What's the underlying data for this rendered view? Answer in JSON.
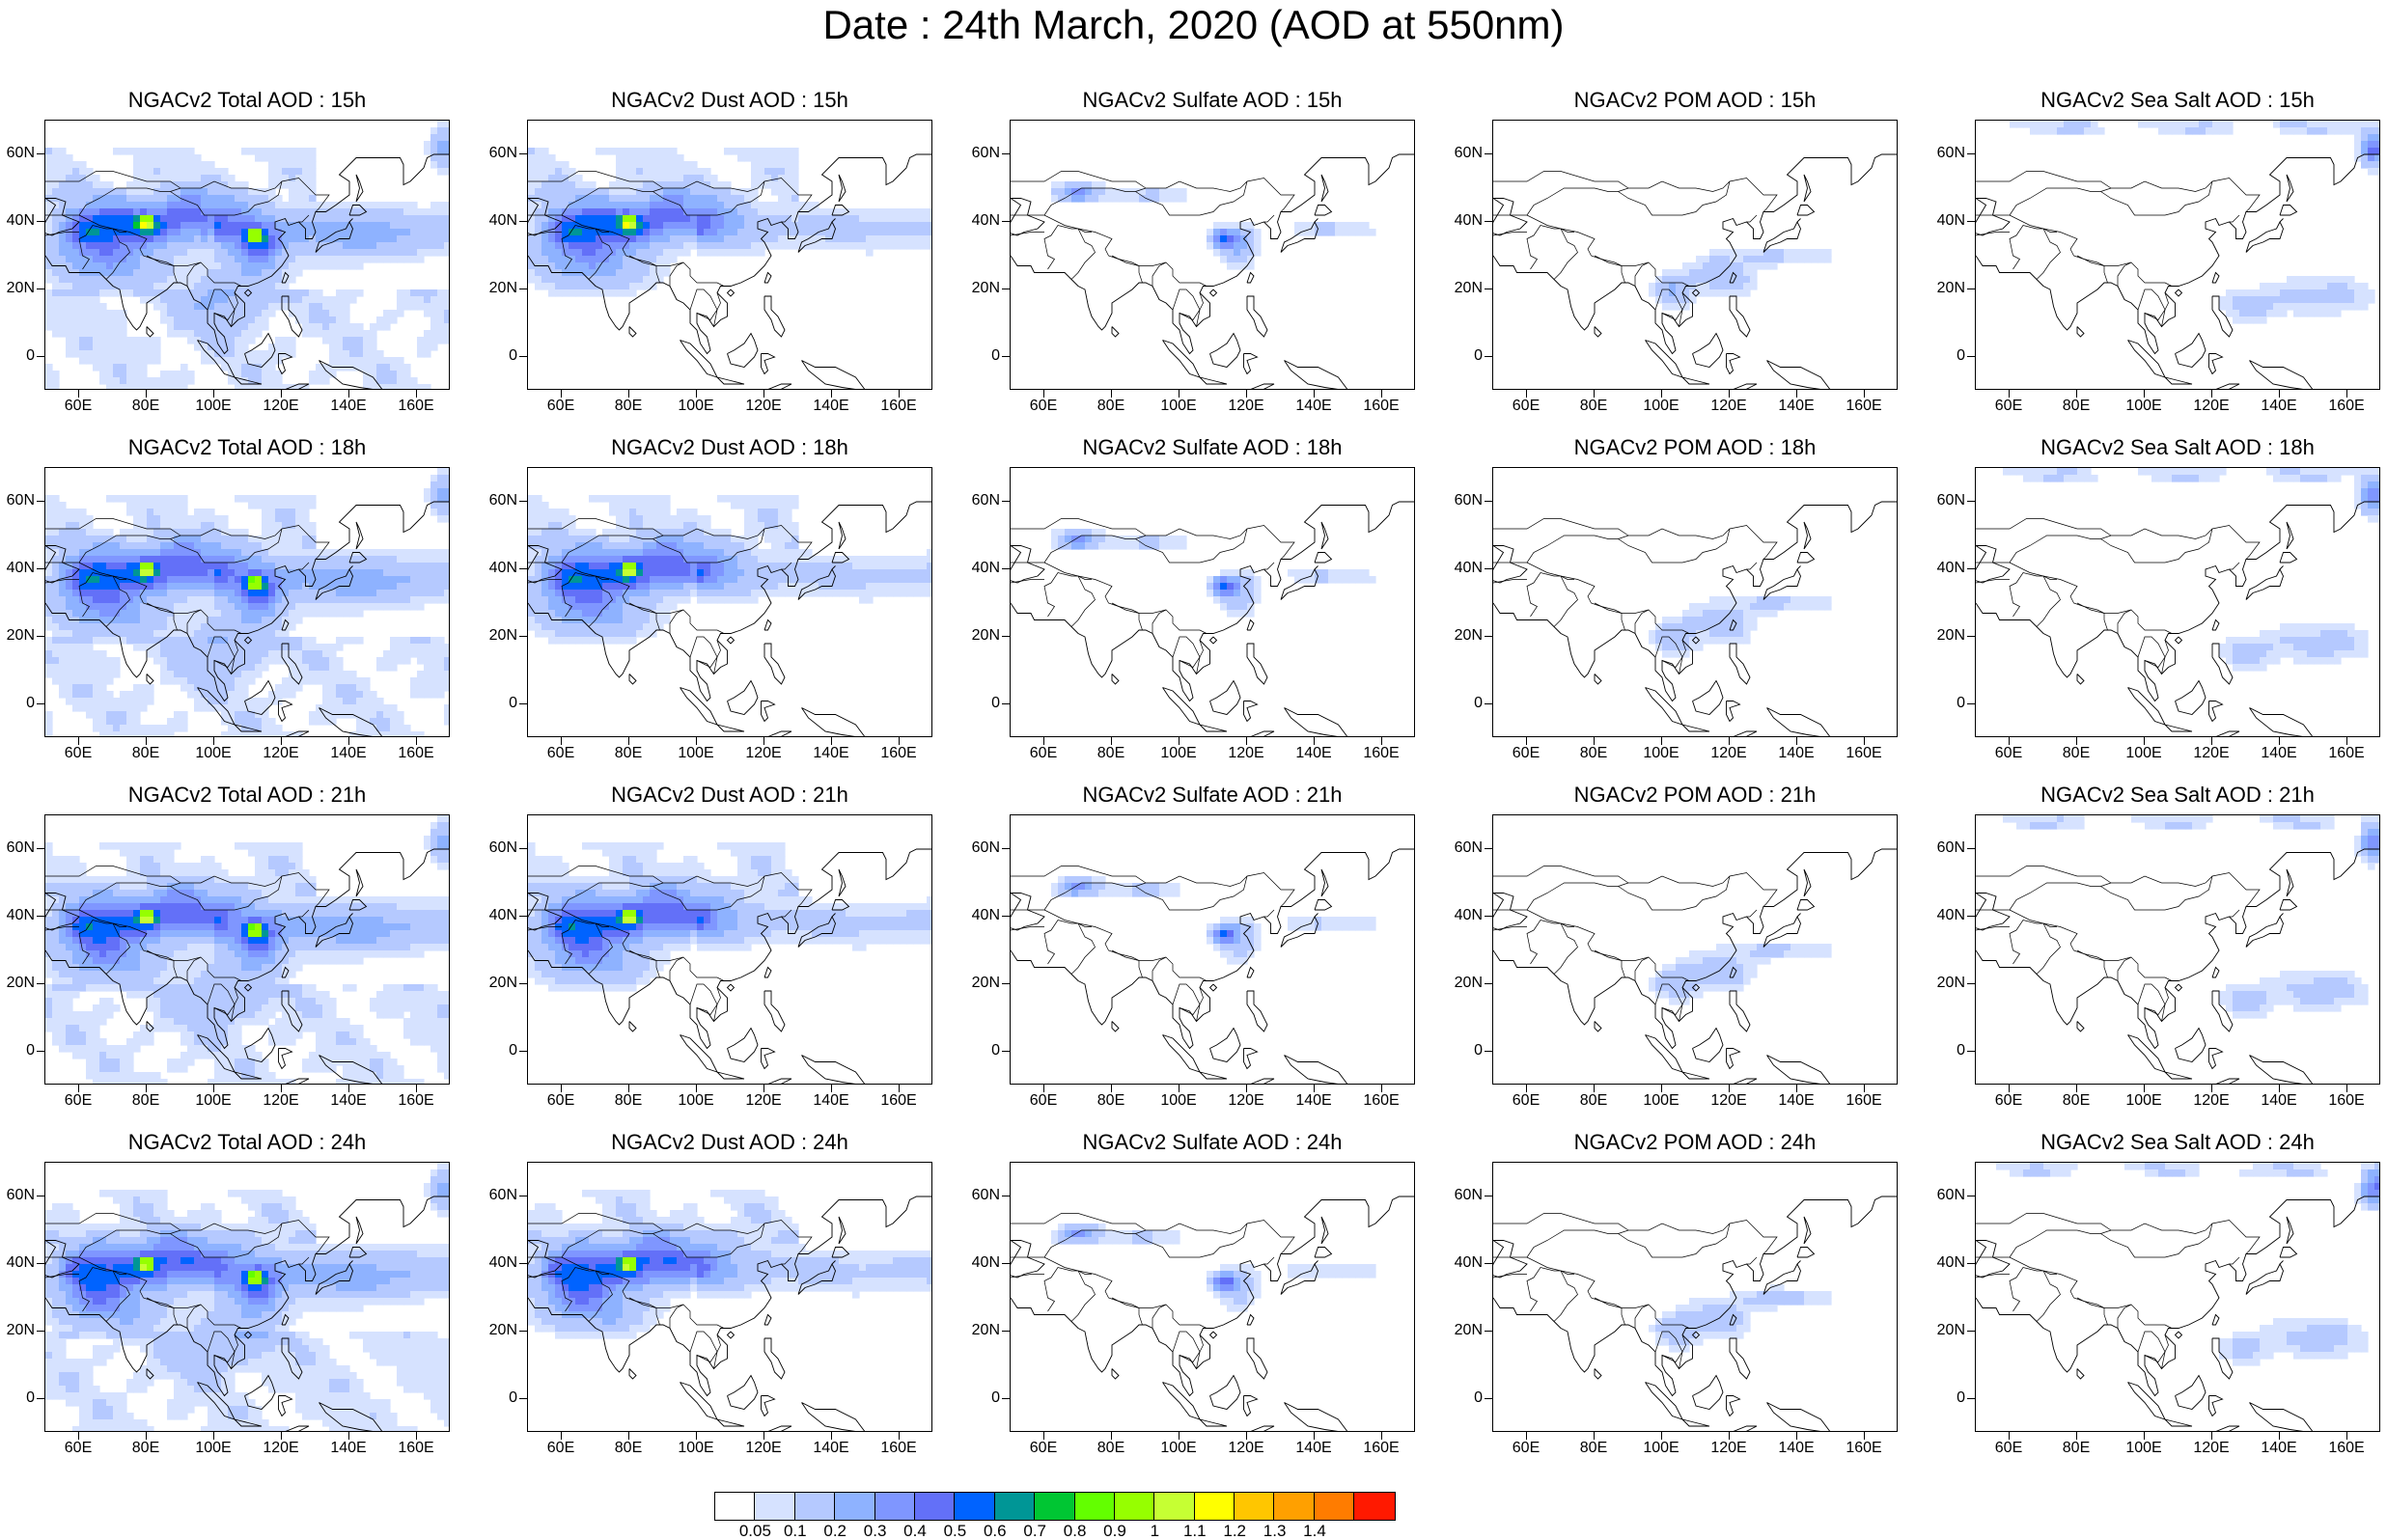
{
  "figure": {
    "title": "Date : 24th March, 2020 (AOD at 550nm)"
  },
  "panels": [
    {
      "title": "NGACv2 Total AOD : 15h",
      "species": "total",
      "hour": 15
    },
    {
      "title": "NGACv2 Dust AOD : 15h",
      "species": "dust",
      "hour": 15
    },
    {
      "title": "NGACv2 Sulfate AOD : 15h",
      "species": "sulfate",
      "hour": 15
    },
    {
      "title": "NGACv2 POM AOD : 15h",
      "species": "pom",
      "hour": 15
    },
    {
      "title": "NGACv2 Sea Salt AOD : 15h",
      "species": "seasalt",
      "hour": 15
    },
    {
      "title": "NGACv2 Total AOD : 18h",
      "species": "total",
      "hour": 18
    },
    {
      "title": "NGACv2 Dust AOD : 18h",
      "species": "dust",
      "hour": 18
    },
    {
      "title": "NGACv2 Sulfate AOD : 18h",
      "species": "sulfate",
      "hour": 18
    },
    {
      "title": "NGACv2 POM AOD : 18h",
      "species": "pom",
      "hour": 18
    },
    {
      "title": "NGACv2 Sea Salt AOD : 18h",
      "species": "seasalt",
      "hour": 18
    },
    {
      "title": "NGACv2 Total AOD : 21h",
      "species": "total",
      "hour": 21
    },
    {
      "title": "NGACv2 Dust AOD : 21h",
      "species": "dust",
      "hour": 21
    },
    {
      "title": "NGACv2 Sulfate AOD : 21h",
      "species": "sulfate",
      "hour": 21
    },
    {
      "title": "NGACv2 POM AOD : 21h",
      "species": "pom",
      "hour": 21
    },
    {
      "title": "NGACv2 Sea Salt AOD : 21h",
      "species": "seasalt",
      "hour": 21
    },
    {
      "title": "NGACv2 Total AOD : 24h",
      "species": "total",
      "hour": 24
    },
    {
      "title": "NGACv2 Dust AOD : 24h",
      "species": "dust",
      "hour": 24
    },
    {
      "title": "NGACv2 Sulfate AOD : 24h",
      "species": "sulfate",
      "hour": 24
    },
    {
      "title": "NGACv2 POM AOD : 24h",
      "species": "pom",
      "hour": 24
    },
    {
      "title": "NGACv2 Sea Salt  AOD : 24h",
      "species": "seasalt",
      "hour": 24
    }
  ],
  "axes": {
    "lat_ticks": [
      {
        "value": 60,
        "label": "60N"
      },
      {
        "value": 40,
        "label": "40N"
      },
      {
        "value": 20,
        "label": "20N"
      },
      {
        "value": 0,
        "label": "0"
      }
    ],
    "lon_ticks": [
      {
        "value": 60,
        "label": "60E"
      },
      {
        "value": 80,
        "label": "80E"
      },
      {
        "value": 100,
        "label": "100E"
      },
      {
        "value": 120,
        "label": "120E"
      },
      {
        "value": 140,
        "label": "140E"
      },
      {
        "value": 160,
        "label": "160E"
      }
    ],
    "lon_range": [
      50,
      170
    ],
    "lat_range": [
      -10,
      70
    ]
  },
  "colorbar": {
    "labels": [
      "0.05",
      "0.1",
      "0.2",
      "0.3",
      "0.4",
      "0.5",
      "0.6",
      "0.7",
      "0.8",
      "0.9",
      "1",
      "1.1",
      "1.2",
      "1.3",
      "1.4"
    ],
    "colors": [
      "#ffffff",
      "#d6e2ff",
      "#b5c9ff",
      "#8eb2ff",
      "#7f96ff",
      "#6370f8",
      "#0063ff",
      "#009696",
      "#00c633",
      "#63ff00",
      "#96ff00",
      "#c6ff33",
      "#ffff00",
      "#ffc600",
      "#ffa000",
      "#ff7c00",
      "#ff1900"
    ]
  }
}
